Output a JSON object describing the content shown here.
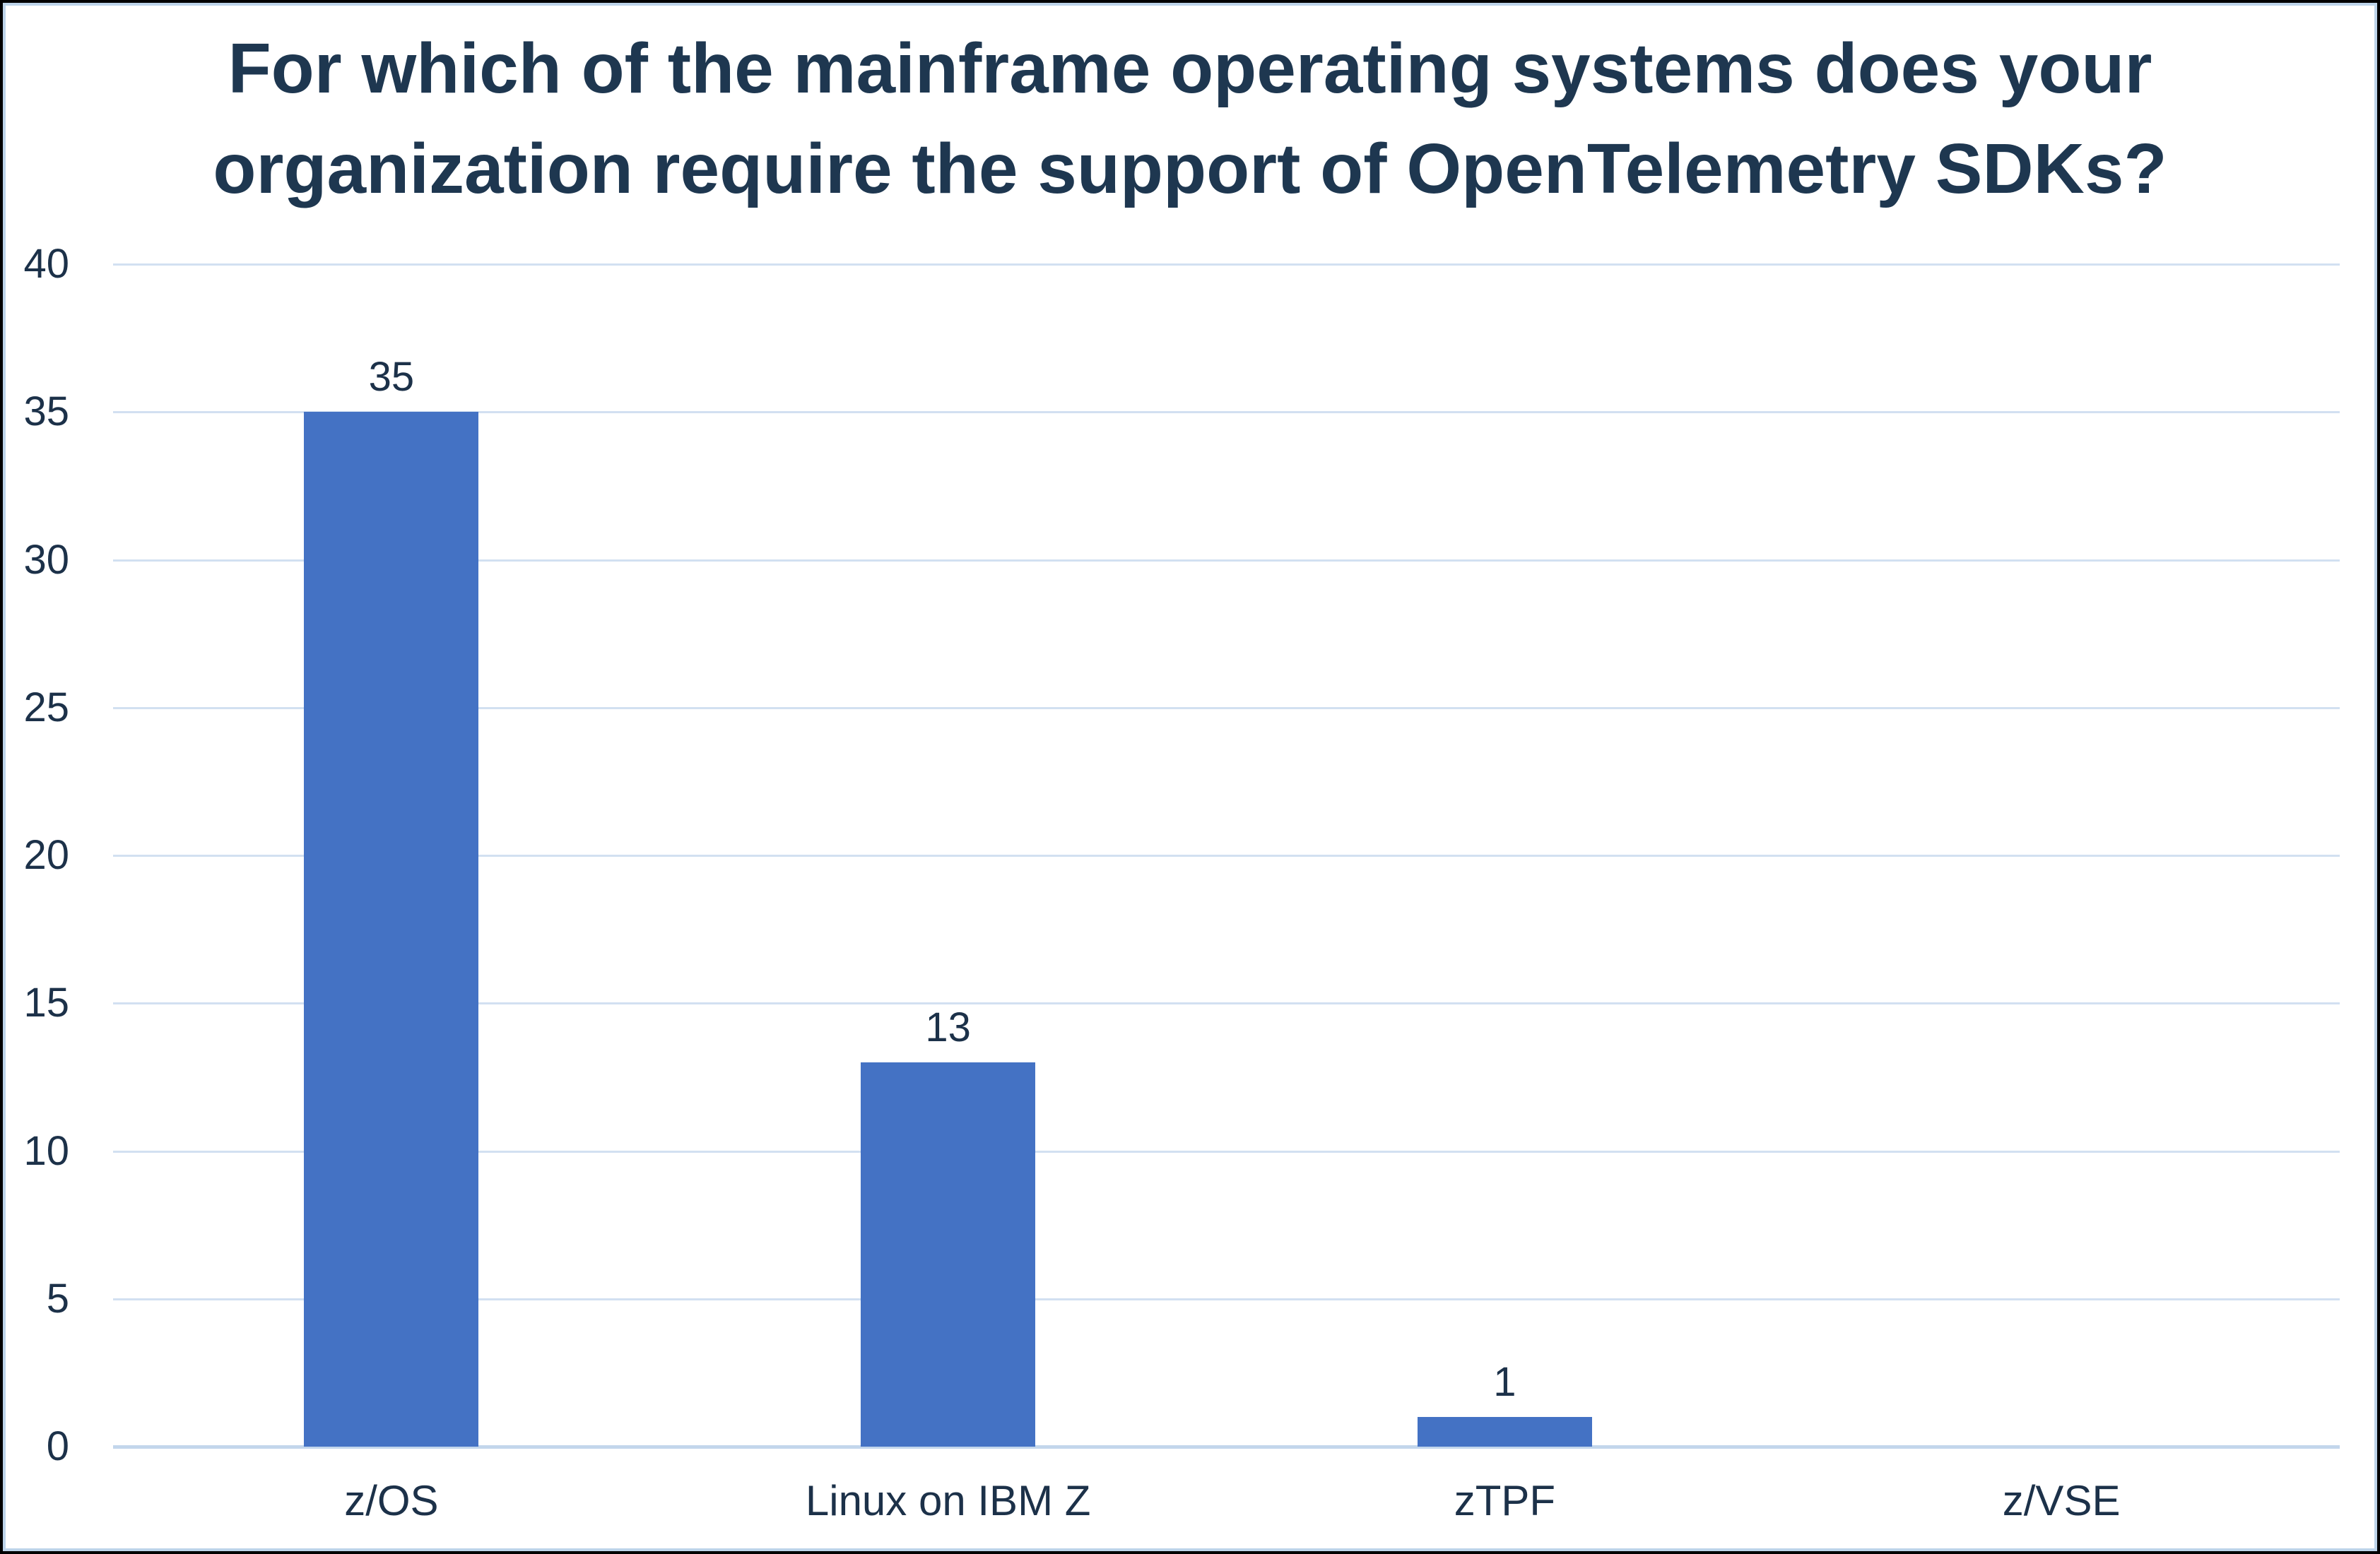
{
  "chart_data": {
    "type": "bar",
    "title": "For which of the mainframe operating systems does your organization require the support of OpenTelemetry SDKs?",
    "title_lines": [
      "For which of the mainframe operating systems does your",
      "organization require the support of OpenTelemetry SDKs?"
    ],
    "categories": [
      "z/OS",
      "Linux on IBM Z",
      "zTPF",
      "z/VSE"
    ],
    "values": [
      35,
      13,
      1,
      0
    ],
    "y_ticks": [
      0,
      5,
      10,
      15,
      20,
      25,
      30,
      35,
      40
    ],
    "ylim": [
      0,
      40
    ],
    "grid": true,
    "legend": "none",
    "xlabel": "",
    "ylabel": "",
    "colors": {
      "bar": "#4472C4",
      "title_text": "#1E3750",
      "axis_text": "#1C3149",
      "gridline": "#D2E0F1",
      "baseline": "#C3D6EC",
      "inner_border": "#BDD4EA",
      "outer_border": "#000000",
      "background": "#FFFFFF"
    }
  }
}
